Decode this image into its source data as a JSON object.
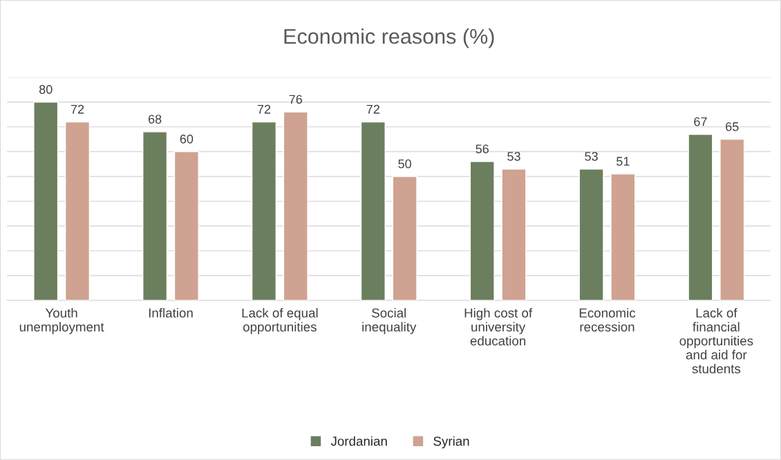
{
  "chart_data": {
    "type": "bar",
    "title": "Economic reasons (%)",
    "categories": [
      "Youth\nunemployment",
      "Inflation",
      "Lack of equal\nopportunities",
      "Social\ninequality",
      "High cost of\nuniversity\neducation",
      "Economic\nrecession",
      "Lack of\nfinancial\nopportunities\nand aid for\nstudents"
    ],
    "series": [
      {
        "name": "Jordanian",
        "color": "#6b7f5e",
        "values": [
          80,
          68,
          72,
          72,
          56,
          53,
          67
        ]
      },
      {
        "name": "Syrian",
        "color": "#cfa291",
        "values": [
          72,
          60,
          76,
          50,
          53,
          51,
          65
        ]
      }
    ],
    "ylim": [
      0,
      90
    ],
    "yticks": [
      {
        "value": 0,
        "label": null
      },
      {
        "value": 10,
        "label": null
      },
      {
        "value": 20,
        "label": null
      },
      {
        "value": 30,
        "label": null
      },
      {
        "value": 40,
        "label": null
      },
      {
        "value": 50,
        "label": null
      },
      {
        "value": 60,
        "label": null
      },
      {
        "value": 70,
        "label": null
      },
      {
        "value": 80,
        "label": null
      },
      {
        "value": 90,
        "label": null
      }
    ],
    "tick_labels": "x",
    "grid": "y",
    "legend": "bottom",
    "data_labels": true
  }
}
